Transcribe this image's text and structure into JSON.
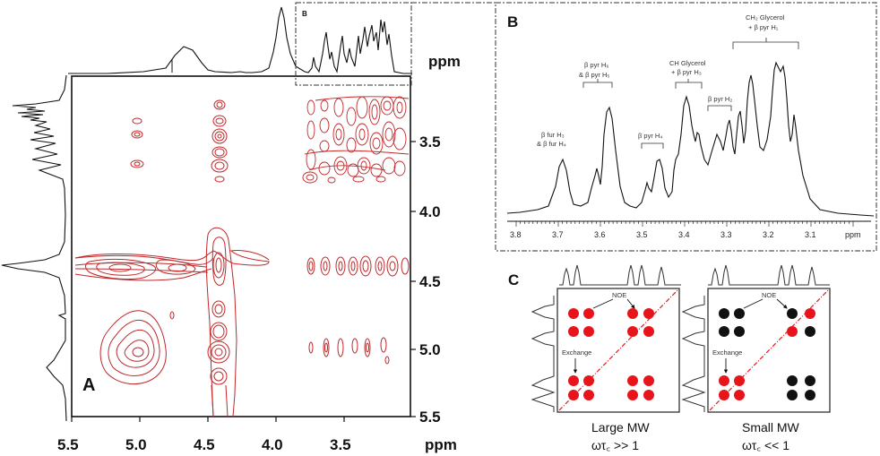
{
  "panel_a": {
    "label": "A",
    "inset_label": "B",
    "ppm_unit": "ppm",
    "x_ticks": [
      "5.5",
      "5.0",
      "4.5",
      "4.0",
      "3.5"
    ],
    "y_ticks": [
      "3.5",
      "4.0",
      "4.5",
      "5.0",
      "5.5"
    ],
    "contour_color": "#c0282a"
  },
  "panel_b": {
    "label": "B",
    "ppm_unit": "ppm",
    "x_ticks": [
      "3.8",
      "3.7",
      "3.6",
      "3.5",
      "3.4",
      "3.3",
      "3.2",
      "3.1"
    ],
    "annotations": [
      {
        "line1": "β fur H₃",
        "line2": "& β fur H₄"
      },
      {
        "line1": "β pyr H₆",
        "line2": "& β pyr H₅"
      },
      {
        "line1": "β pyr H₄",
        "line2": ""
      },
      {
        "line1": "CH Glycerol",
        "line2": "+ β pyr H₃"
      },
      {
        "line1": "β pyr H₂",
        "line2": ""
      },
      {
        "line1": "CH₂ Glycerol",
        "line2": "+ β pyr H₁"
      }
    ]
  },
  "panel_c": {
    "label": "C",
    "noe_label": "NOE",
    "exchange_label": "Exchange",
    "left_caption_line1": "Large MW",
    "left_caption_line2": "ωτ꜀ >> 1",
    "right_caption_line1": "Small MW",
    "right_caption_line2": "ωτ꜀ << 1",
    "positive_color": "#e8141c",
    "negative_color": "#111111"
  }
}
